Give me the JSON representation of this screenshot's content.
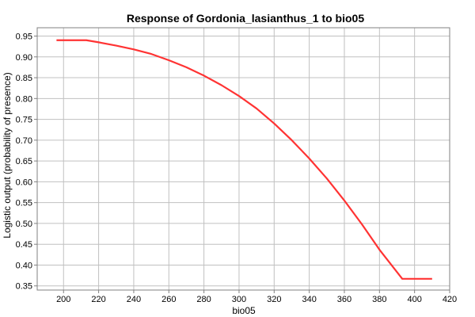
{
  "chart_data": {
    "type": "line",
    "title": "Response of Gordonia_lasianthus_1 to bio05",
    "xlabel": "bio05",
    "ylabel": "Logistic output (probability of presence)",
    "xlim": [
      185,
      420
    ],
    "ylim": [
      0.34,
      0.97
    ],
    "xticks": [
      "200",
      "220",
      "240",
      "260",
      "280",
      "300",
      "320",
      "340",
      "360",
      "380",
      "400",
      "420"
    ],
    "yticks": [
      "0.35",
      "0.40",
      "0.45",
      "0.50",
      "0.55",
      "0.60",
      "0.65",
      "0.70",
      "0.75",
      "0.80",
      "0.85",
      "0.90",
      "0.95"
    ],
    "grid": true,
    "series": [
      {
        "color": "#ff3333",
        "x": [
          196,
          213,
          220,
          230,
          240,
          250,
          260,
          270,
          280,
          290,
          300,
          310,
          320,
          330,
          340,
          350,
          360,
          370,
          380,
          393,
          410
        ],
        "y": [
          0.94,
          0.94,
          0.935,
          0.927,
          0.918,
          0.907,
          0.892,
          0.875,
          0.855,
          0.832,
          0.806,
          0.776,
          0.74,
          0.7,
          0.656,
          0.608,
          0.555,
          0.498,
          0.437,
          0.367,
          0.367
        ]
      }
    ]
  }
}
